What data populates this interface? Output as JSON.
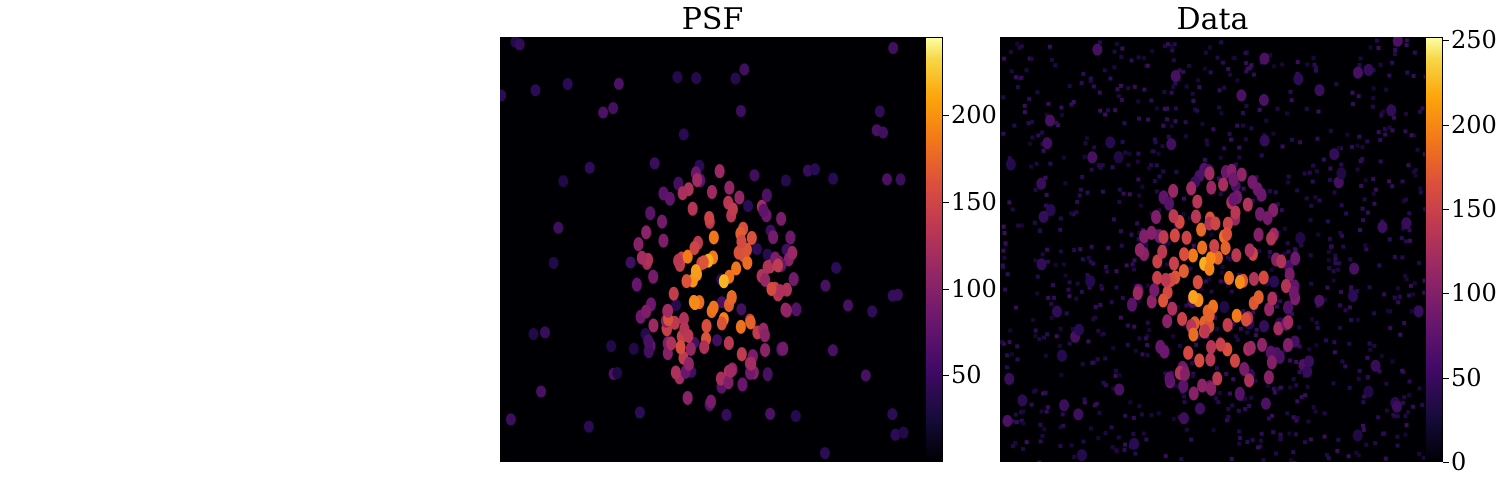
{
  "chart_data": [
    {
      "type": "heatmap",
      "title": "PSF",
      "colormap": "inferno",
      "colorbar": {
        "range": [
          0,
          245
        ],
        "ticks": [
          50,
          100,
          150,
          200
        ],
        "tick_labels": [
          "50",
          "100",
          "150",
          "200"
        ]
      },
      "axes_visible": false
    },
    {
      "type": "heatmap",
      "title": "Data",
      "colormap": "inferno",
      "colorbar": {
        "range": [
          0,
          252
        ],
        "ticks": [
          0,
          50,
          100,
          150,
          200,
          250
        ],
        "tick_labels": [
          "0",
          "50",
          "100",
          "150",
          "200",
          "250"
        ]
      },
      "axes_visible": false
    }
  ]
}
